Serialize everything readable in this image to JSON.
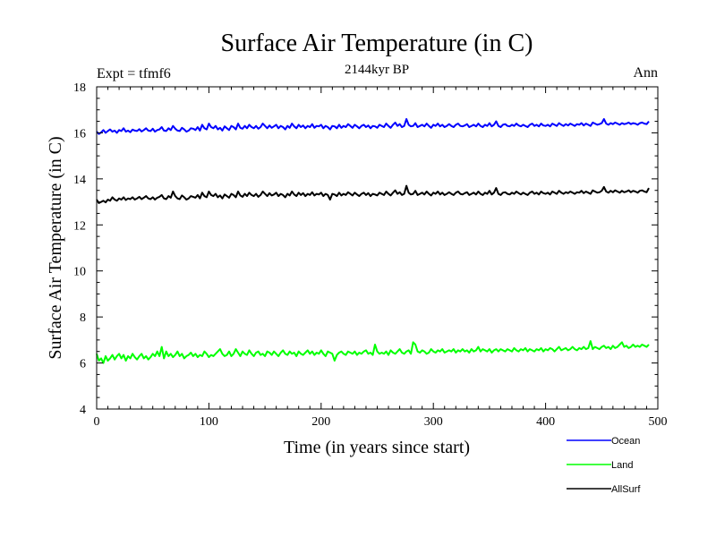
{
  "chart_data": {
    "type": "line",
    "title": "Surface Air Temperature (in C)",
    "subtitle": "2144kyr BP",
    "left_label": "Expt = tfmf6",
    "right_label": "Ann",
    "xlabel": "Time (in years since start)",
    "ylabel": "Surface Air Temperature (in C)",
    "xlim": [
      0,
      500
    ],
    "ylim": [
      4,
      18
    ],
    "x_ticks": [
      0,
      100,
      200,
      300,
      400,
      500
    ],
    "y_ticks": [
      4,
      6,
      8,
      10,
      12,
      14,
      16,
      18
    ],
    "x_step": 2,
    "series": [
      {
        "name": "Ocean",
        "color": "#0000ff",
        "values": [
          16.05,
          15.95,
          16.02,
          16.12,
          16.0,
          16.08,
          16.15,
          16.05,
          16.1,
          16.0,
          16.12,
          16.08,
          16.2,
          16.05,
          16.1,
          16.03,
          16.14,
          16.1,
          16.08,
          16.16,
          16.06,
          16.12,
          16.2,
          16.1,
          16.08,
          16.18,
          16.05,
          16.12,
          16.15,
          16.25,
          16.1,
          16.08,
          16.2,
          16.12,
          16.3,
          16.18,
          16.1,
          16.08,
          16.22,
          16.15,
          16.05,
          16.1,
          16.2,
          16.18,
          16.12,
          16.25,
          16.1,
          16.35,
          16.2,
          16.15,
          16.4,
          16.25,
          16.2,
          16.3,
          16.15,
          16.22,
          16.1,
          16.28,
          16.2,
          16.12,
          16.3,
          16.25,
          16.15,
          16.4,
          16.22,
          16.18,
          16.3,
          16.2,
          16.35,
          16.25,
          16.2,
          16.3,
          16.18,
          16.25,
          16.4,
          16.3,
          16.2,
          16.32,
          16.22,
          16.28,
          16.35,
          16.2,
          16.3,
          16.25,
          16.15,
          16.3,
          16.22,
          16.4,
          16.28,
          16.2,
          16.35,
          16.25,
          16.32,
          16.2,
          16.3,
          16.25,
          16.38,
          16.22,
          16.3,
          16.28,
          16.35,
          16.2,
          16.3,
          16.25,
          16.15,
          16.3,
          16.28,
          16.2,
          16.35,
          16.22,
          16.3,
          16.25,
          16.38,
          16.3,
          16.22,
          16.35,
          16.28,
          16.2,
          16.3,
          16.35,
          16.25,
          16.32,
          16.2,
          16.3,
          16.28,
          16.22,
          16.35,
          16.3,
          16.25,
          16.4,
          16.3,
          16.22,
          16.35,
          16.45,
          16.3,
          16.38,
          16.25,
          16.3,
          16.6,
          16.35,
          16.28,
          16.3,
          16.42,
          16.25,
          16.3,
          16.35,
          16.28,
          16.4,
          16.3,
          16.22,
          16.35,
          16.3,
          16.4,
          16.28,
          16.35,
          16.25,
          16.3,
          16.38,
          16.3,
          16.25,
          16.35,
          16.4,
          16.3,
          16.28,
          16.32,
          16.38,
          16.25,
          16.3,
          16.35,
          16.28,
          16.4,
          16.3,
          16.25,
          16.35,
          16.3,
          16.42,
          16.28,
          16.35,
          16.5,
          16.3,
          16.25,
          16.35,
          16.38,
          16.3,
          16.28,
          16.35,
          16.3,
          16.4,
          16.32,
          16.28,
          16.35,
          16.3,
          16.25,
          16.35,
          16.4,
          16.3,
          16.35,
          16.28,
          16.4,
          16.32,
          16.3,
          16.35,
          16.28,
          16.4,
          16.35,
          16.3,
          16.42,
          16.35,
          16.3,
          16.38,
          16.32,
          16.4,
          16.35,
          16.3,
          16.38,
          16.35,
          16.42,
          16.32,
          16.4,
          16.35,
          16.3,
          16.45,
          16.4,
          16.35,
          16.38,
          16.42,
          16.6,
          16.4,
          16.35,
          16.42,
          16.38,
          16.45,
          16.4,
          16.35,
          16.42,
          16.38,
          16.4,
          16.45,
          16.38,
          16.42,
          16.4,
          16.35,
          16.42,
          16.45,
          16.4,
          16.38,
          16.5
        ]
      },
      {
        "name": "Land",
        "color": "#00ff00",
        "values": [
          6.4,
          6.1,
          6.2,
          6.0,
          6.3,
          6.1,
          6.2,
          6.35,
          6.15,
          6.3,
          6.4,
          6.2,
          6.35,
          6.1,
          6.3,
          6.2,
          6.4,
          6.25,
          6.15,
          6.3,
          6.4,
          6.2,
          6.3,
          6.15,
          6.25,
          6.4,
          6.3,
          6.5,
          6.3,
          6.7,
          6.2,
          6.5,
          6.3,
          6.4,
          6.25,
          6.35,
          6.5,
          6.3,
          6.4,
          6.2,
          6.3,
          6.35,
          6.45,
          6.3,
          6.4,
          6.25,
          6.35,
          6.3,
          6.5,
          6.4,
          6.25,
          6.35,
          6.3,
          6.4,
          6.5,
          6.6,
          6.4,
          6.3,
          6.35,
          6.5,
          6.3,
          6.4,
          6.6,
          6.45,
          6.3,
          6.5,
          6.4,
          6.35,
          6.55,
          6.4,
          6.3,
          6.45,
          6.5,
          6.35,
          6.4,
          6.3,
          6.5,
          6.45,
          6.35,
          6.5,
          6.4,
          6.3,
          6.45,
          6.55,
          6.4,
          6.35,
          6.5,
          6.4,
          6.45,
          6.3,
          6.5,
          6.4,
          6.35,
          6.45,
          6.55,
          6.4,
          6.5,
          6.35,
          6.45,
          6.4,
          6.55,
          6.4,
          6.3,
          6.5,
          6.45,
          6.4,
          6.1,
          6.35,
          6.45,
          6.5,
          6.4,
          6.35,
          6.5,
          6.45,
          6.4,
          6.5,
          6.35,
          6.45,
          6.4,
          6.5,
          6.55,
          6.4,
          6.45,
          6.35,
          6.8,
          6.5,
          6.4,
          6.45,
          6.4,
          6.5,
          6.35,
          6.55,
          6.45,
          6.4,
          6.5,
          6.6,
          6.45,
          6.4,
          6.5,
          6.55,
          6.4,
          6.9,
          6.8,
          6.5,
          6.45,
          6.55,
          6.5,
          6.4,
          6.45,
          6.6,
          6.5,
          6.45,
          6.55,
          6.5,
          6.6,
          6.45,
          6.5,
          6.55,
          6.5,
          6.6,
          6.45,
          6.55,
          6.5,
          6.6,
          6.5,
          6.55,
          6.45,
          6.6,
          6.5,
          6.55,
          6.7,
          6.5,
          6.6,
          6.55,
          6.5,
          6.6,
          6.45,
          6.55,
          6.6,
          6.5,
          6.6,
          6.55,
          6.5,
          6.6,
          6.55,
          6.5,
          6.65,
          6.55,
          6.5,
          6.6,
          6.55,
          6.65,
          6.5,
          6.6,
          6.55,
          6.5,
          6.6,
          6.55,
          6.65,
          6.5,
          6.6,
          6.55,
          6.65,
          6.6,
          6.5,
          6.6,
          6.7,
          6.55,
          6.6,
          6.65,
          6.55,
          6.6,
          6.7,
          6.6,
          6.55,
          6.65,
          6.6,
          6.7,
          6.6,
          6.65,
          6.95,
          6.6,
          6.7,
          6.65,
          6.6,
          6.7,
          6.75,
          6.65,
          6.7,
          6.6,
          6.75,
          6.65,
          6.7,
          6.8,
          6.9,
          6.7,
          6.75,
          6.65,
          6.7,
          6.8,
          6.7,
          6.75,
          6.7,
          6.8,
          6.75,
          6.7,
          6.8
        ]
      },
      {
        "name": "AllSurf",
        "color": "#000000",
        "values": [
          13.1,
          12.95,
          13.0,
          13.05,
          12.98,
          13.1,
          13.05,
          13.2,
          13.1,
          13.05,
          13.15,
          13.1,
          13.2,
          13.08,
          13.15,
          13.12,
          13.2,
          13.1,
          13.15,
          13.22,
          13.12,
          13.18,
          13.25,
          13.15,
          13.12,
          13.2,
          13.1,
          13.18,
          13.22,
          13.3,
          13.15,
          13.12,
          13.25,
          13.18,
          13.45,
          13.25,
          13.15,
          13.12,
          13.28,
          13.2,
          13.1,
          13.15,
          13.25,
          13.22,
          13.18,
          13.3,
          13.15,
          13.4,
          13.25,
          13.2,
          13.45,
          13.3,
          13.25,
          13.35,
          13.2,
          13.28,
          13.15,
          13.32,
          13.25,
          13.18,
          13.35,
          13.3,
          13.2,
          13.45,
          13.28,
          13.22,
          13.35,
          13.25,
          13.4,
          13.3,
          13.25,
          13.35,
          13.22,
          13.3,
          13.45,
          13.35,
          13.25,
          13.38,
          13.28,
          13.32,
          13.4,
          13.25,
          13.35,
          13.3,
          13.2,
          13.35,
          13.28,
          13.45,
          13.32,
          13.25,
          13.4,
          13.3,
          13.38,
          13.25,
          13.35,
          13.3,
          13.42,
          13.28,
          13.35,
          13.32,
          13.4,
          13.25,
          13.35,
          13.3,
          13.1,
          13.35,
          13.32,
          13.25,
          13.4,
          13.28,
          13.35,
          13.3,
          13.42,
          13.35,
          13.28,
          13.4,
          13.32,
          13.25,
          13.35,
          13.4,
          13.3,
          13.38,
          13.25,
          13.35,
          13.32,
          13.28,
          13.4,
          13.35,
          13.3,
          13.45,
          13.35,
          13.28,
          13.4,
          13.5,
          13.35,
          13.42,
          13.3,
          13.35,
          13.7,
          13.4,
          13.32,
          13.35,
          13.48,
          13.3,
          13.35,
          13.4,
          13.32,
          13.45,
          13.35,
          13.28,
          13.4,
          13.35,
          13.45,
          13.32,
          13.4,
          13.3,
          13.35,
          13.42,
          13.35,
          13.3,
          13.4,
          13.45,
          13.35,
          13.32,
          13.38,
          13.42,
          13.3,
          13.35,
          13.4,
          13.32,
          13.45,
          13.35,
          13.3,
          13.4,
          13.35,
          13.48,
          13.32,
          13.4,
          13.6,
          13.35,
          13.3,
          13.4,
          13.42,
          13.35,
          13.32,
          13.4,
          13.35,
          13.45,
          13.38,
          13.32,
          13.4,
          13.35,
          13.3,
          13.4,
          13.45,
          13.35,
          13.4,
          13.32,
          13.45,
          13.38,
          13.35,
          13.4,
          13.32,
          13.45,
          13.4,
          13.35,
          13.48,
          13.4,
          13.35,
          13.42,
          13.38,
          13.45,
          13.4,
          13.35,
          13.42,
          13.4,
          13.48,
          13.38,
          13.45,
          13.4,
          13.35,
          13.5,
          13.45,
          13.4,
          13.42,
          13.48,
          13.65,
          13.45,
          13.4,
          13.48,
          13.42,
          13.5,
          13.45,
          13.4,
          13.48,
          13.42,
          13.45,
          13.5,
          13.42,
          13.48,
          13.45,
          13.4,
          13.48,
          13.5,
          13.45,
          13.42,
          13.6
        ]
      }
    ]
  }
}
